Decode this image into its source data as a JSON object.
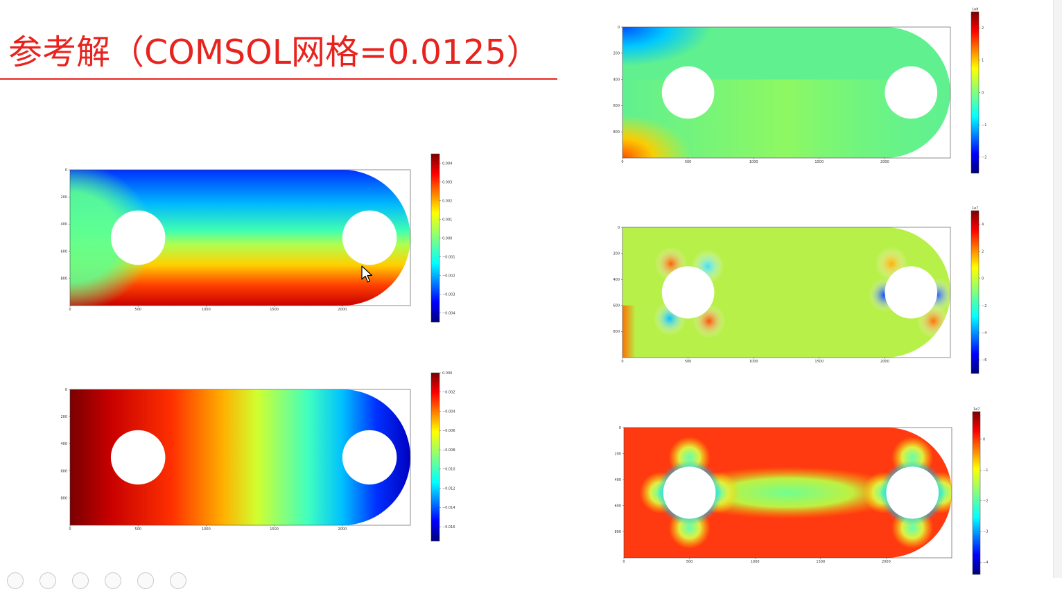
{
  "slide": {
    "title": "参考解（COMSOL网格=0.0125）"
  },
  "colors": {
    "title_red": "#e8231e",
    "jet": [
      "#00008f",
      "#0000ff",
      "#00ffff",
      "#ffff00",
      "#ff0000",
      "#800000"
    ]
  },
  "chart_data": [
    {
      "type": "heatmap",
      "name_key": "top-left",
      "xticks": [
        "0",
        "500",
        "1000",
        "1500",
        "2000"
      ],
      "yticks": [
        "0",
        "200",
        "400",
        "600",
        "800"
      ],
      "colorbar": {
        "ticks": [
          "0.004",
          "0.003",
          "0.002",
          "0.001",
          "0.000",
          "−0.001",
          "−0.002",
          "−0.003",
          "−0.004"
        ],
        "exponent": ""
      },
      "vmin": -0.0045,
      "vmax": 0.0045
    },
    {
      "type": "heatmap",
      "name_key": "bottom-left",
      "xticks": [
        "0",
        "500",
        "1000",
        "1500",
        "2000"
      ],
      "yticks": [
        "0",
        "200",
        "400",
        "600",
        "800"
      ],
      "colorbar": {
        "ticks": [
          "0.000",
          "−0.002",
          "−0.004",
          "−0.006",
          "−0.008",
          "−0.010",
          "−0.012",
          "−0.014",
          "−0.016"
        ],
        "exponent": ""
      },
      "vmin": -0.0175,
      "vmax": 0.0
    },
    {
      "type": "heatmap",
      "name_key": "top-right",
      "xticks": [
        "0",
        "500",
        "1000",
        "1500",
        "2000"
      ],
      "yticks": [
        "0",
        "200",
        "400",
        "600",
        "800"
      ],
      "colorbar": {
        "ticks": [
          "2",
          "1",
          "0",
          "−1",
          "−2"
        ],
        "exponent": "1e8"
      },
      "vmin": -2.5,
      "vmax": 2.5
    },
    {
      "type": "heatmap",
      "name_key": "middle-right",
      "xticks": [
        "0",
        "500",
        "1000",
        "1500",
        "2000"
      ],
      "yticks": [
        "0",
        "200",
        "400",
        "600",
        "800"
      ],
      "colorbar": {
        "ticks": [
          "4",
          "2",
          "0",
          "−2",
          "−4",
          "−6"
        ],
        "exponent": "1e7"
      },
      "vmin": -7,
      "vmax": 5
    },
    {
      "type": "heatmap",
      "name_key": "bottom-right",
      "xticks": [
        "0",
        "500",
        "1000",
        "1500",
        "2000"
      ],
      "yticks": [
        "0",
        "200",
        "400",
        "600",
        "800"
      ],
      "colorbar": {
        "ticks": [
          "0",
          "−1",
          "−2",
          "−3",
          "−4"
        ],
        "exponent": "1e7"
      },
      "vmin": -4.4,
      "vmax": 0.9
    }
  ]
}
